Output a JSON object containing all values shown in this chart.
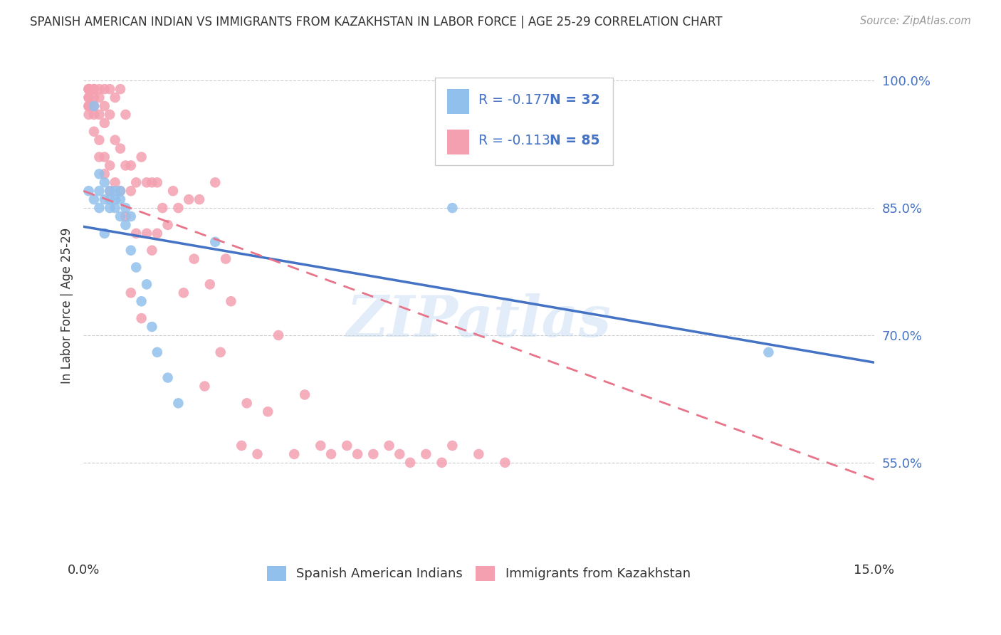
{
  "title": "SPANISH AMERICAN INDIAN VS IMMIGRANTS FROM KAZAKHSTAN IN LABOR FORCE | AGE 25-29 CORRELATION CHART",
  "source": "Source: ZipAtlas.com",
  "ylabel": "In Labor Force | Age 25-29",
  "xlim": [
    0.0,
    0.15
  ],
  "ylim": [
    0.44,
    1.03
  ],
  "y_ticks_right": [
    1.0,
    0.85,
    0.7,
    0.55
  ],
  "y_tick_labels_right": [
    "100.0%",
    "85.0%",
    "70.0%",
    "55.0%"
  ],
  "blue_color": "#92C0EC",
  "pink_color": "#F4A0B0",
  "blue_line_color": "#4472C4",
  "pink_line_color": "#E8748A",
  "legend_text_color": "#4472C4",
  "legend_r1": "-0.177",
  "legend_n1": "32",
  "legend_r2": "-0.113",
  "legend_n2": "85",
  "watermark": "ZIPatlas",
  "blue_scatter_x": [
    0.001,
    0.002,
    0.002,
    0.003,
    0.003,
    0.003,
    0.004,
    0.004,
    0.004,
    0.005,
    0.005,
    0.005,
    0.006,
    0.006,
    0.006,
    0.007,
    0.007,
    0.007,
    0.008,
    0.008,
    0.009,
    0.009,
    0.01,
    0.011,
    0.012,
    0.013,
    0.014,
    0.016,
    0.018,
    0.025,
    0.07,
    0.13
  ],
  "blue_scatter_y": [
    0.87,
    0.97,
    0.86,
    0.89,
    0.87,
    0.85,
    0.88,
    0.86,
    0.82,
    0.87,
    0.86,
    0.85,
    0.87,
    0.86,
    0.85,
    0.87,
    0.86,
    0.84,
    0.85,
    0.83,
    0.84,
    0.8,
    0.78,
    0.74,
    0.76,
    0.71,
    0.68,
    0.65,
    0.62,
    0.81,
    0.85,
    0.68
  ],
  "pink_scatter_x": [
    0.001,
    0.001,
    0.001,
    0.001,
    0.001,
    0.001,
    0.001,
    0.001,
    0.001,
    0.002,
    0.002,
    0.002,
    0.002,
    0.002,
    0.002,
    0.003,
    0.003,
    0.003,
    0.003,
    0.003,
    0.004,
    0.004,
    0.004,
    0.004,
    0.004,
    0.005,
    0.005,
    0.005,
    0.005,
    0.006,
    0.006,
    0.006,
    0.007,
    0.007,
    0.007,
    0.008,
    0.008,
    0.008,
    0.009,
    0.009,
    0.009,
    0.01,
    0.01,
    0.011,
    0.011,
    0.012,
    0.012,
    0.013,
    0.013,
    0.014,
    0.014,
    0.015,
    0.016,
    0.017,
    0.018,
    0.019,
    0.02,
    0.021,
    0.022,
    0.023,
    0.024,
    0.025,
    0.026,
    0.027,
    0.028,
    0.03,
    0.031,
    0.033,
    0.035,
    0.037,
    0.04,
    0.042,
    0.045,
    0.047,
    0.05,
    0.052,
    0.055,
    0.058,
    0.06,
    0.062,
    0.065,
    0.068,
    0.07,
    0.075,
    0.08
  ],
  "pink_scatter_y": [
    0.99,
    0.99,
    0.99,
    0.98,
    0.98,
    0.97,
    0.97,
    0.97,
    0.96,
    0.99,
    0.99,
    0.98,
    0.97,
    0.96,
    0.94,
    0.99,
    0.98,
    0.96,
    0.93,
    0.91,
    0.99,
    0.97,
    0.95,
    0.91,
    0.89,
    0.99,
    0.96,
    0.9,
    0.87,
    0.98,
    0.93,
    0.88,
    0.99,
    0.92,
    0.87,
    0.96,
    0.9,
    0.84,
    0.9,
    0.87,
    0.75,
    0.88,
    0.82,
    0.91,
    0.72,
    0.88,
    0.82,
    0.88,
    0.8,
    0.88,
    0.82,
    0.85,
    0.83,
    0.87,
    0.85,
    0.75,
    0.86,
    0.79,
    0.86,
    0.64,
    0.76,
    0.88,
    0.68,
    0.79,
    0.74,
    0.57,
    0.62,
    0.56,
    0.61,
    0.7,
    0.56,
    0.63,
    0.57,
    0.56,
    0.57,
    0.56,
    0.56,
    0.57,
    0.56,
    0.55,
    0.56,
    0.55,
    0.57,
    0.56,
    0.55
  ],
  "blue_line_x": [
    0.0,
    0.15
  ],
  "blue_line_y": [
    0.828,
    0.668
  ],
  "pink_line_x": [
    0.0,
    0.15
  ],
  "pink_line_y": [
    0.87,
    0.53
  ],
  "legend_bottom_labels": [
    "Spanish American Indians",
    "Immigrants from Kazakhstan"
  ]
}
